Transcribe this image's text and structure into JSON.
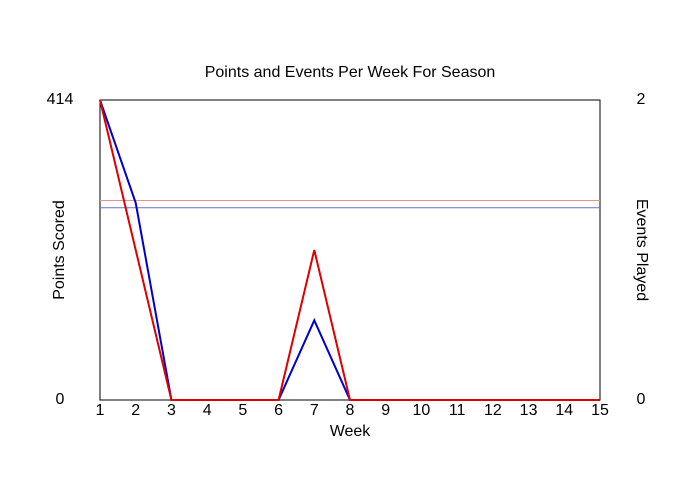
{
  "chart_data": {
    "type": "line",
    "title": "Points and Events Per Week For Season",
    "x_label": "Week",
    "y_label": "Points Scored",
    "y2_label": "Events Played",
    "x": [
      1,
      2,
      3,
      4,
      5,
      6,
      7,
      8,
      9,
      10,
      11,
      12,
      13,
      14,
      15
    ],
    "xlim": [
      1,
      15
    ],
    "xticks": [
      1,
      2,
      3,
      4,
      5,
      6,
      7,
      8,
      9,
      10,
      11,
      12,
      13,
      14,
      15
    ],
    "ylim": [
      0,
      414
    ],
    "yticks": [
      0,
      414
    ],
    "y2lim": [
      0,
      2
    ],
    "y2ticks": [
      0,
      2
    ],
    "y_color": "#0000cc",
    "y2_color": "#dd0000",
    "series": [
      {
        "name": "Points Scored",
        "color": "#0000cc",
        "values": [
          414,
          272,
          0,
          0,
          0,
          0,
          110,
          0,
          0,
          0,
          0,
          0,
          0,
          0,
          0
        ]
      },
      {
        "name": "Events Played",
        "color": "#dd0000",
        "axis": "y2",
        "values": [
          2,
          1,
          0,
          0,
          0,
          0,
          1,
          0,
          0,
          0,
          0,
          0,
          0,
          0,
          0
        ]
      }
    ],
    "reference_lines": [
      {
        "value": 265.3,
        "color": "#6b6bd0"
      },
      {
        "value": 1.33,
        "axis": "y2",
        "color": "#e89090"
      }
    ]
  }
}
